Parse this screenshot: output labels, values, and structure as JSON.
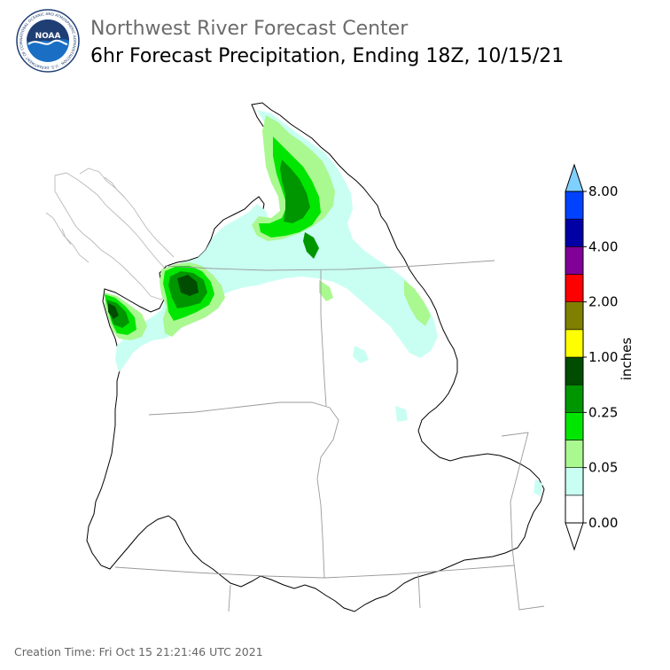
{
  "header": {
    "agency": "Northwest River Forecast Center",
    "product": "6hr Forecast Precipitation, Ending 18Z, 10/15/21",
    "logo_text": "NOAA",
    "logo_ring_text": "NATIONAL OCEANIC AND ATMOSPHERIC ADMINISTRATION · U.S. DEPARTMENT OF COMMERCE"
  },
  "legend": {
    "unit_label": "inches",
    "tick_labels": [
      "8.00",
      "4.00",
      "2.00",
      "1.00",
      "0.25",
      "0.05",
      "0.00"
    ],
    "color_bins": [
      {
        "color": "#ffffff"
      },
      {
        "color": "#c8fff2"
      },
      {
        "color": "#aaf890"
      },
      {
        "color": "#00e600"
      },
      {
        "color": "#009600"
      },
      {
        "color": "#004c00"
      },
      {
        "color": "#ffff00"
      },
      {
        "color": "#808000"
      },
      {
        "color": "#ff0000"
      },
      {
        "color": "#800098"
      },
      {
        "color": "#0000a4"
      },
      {
        "color": "#0042ff"
      }
    ],
    "top_arrow_color": "#80d0ff",
    "bottom_arrow_color": "#ffffff"
  },
  "footer": {
    "creation_time": "Creation Time: Fri Oct 15 21:21:46 UTC 2021"
  }
}
